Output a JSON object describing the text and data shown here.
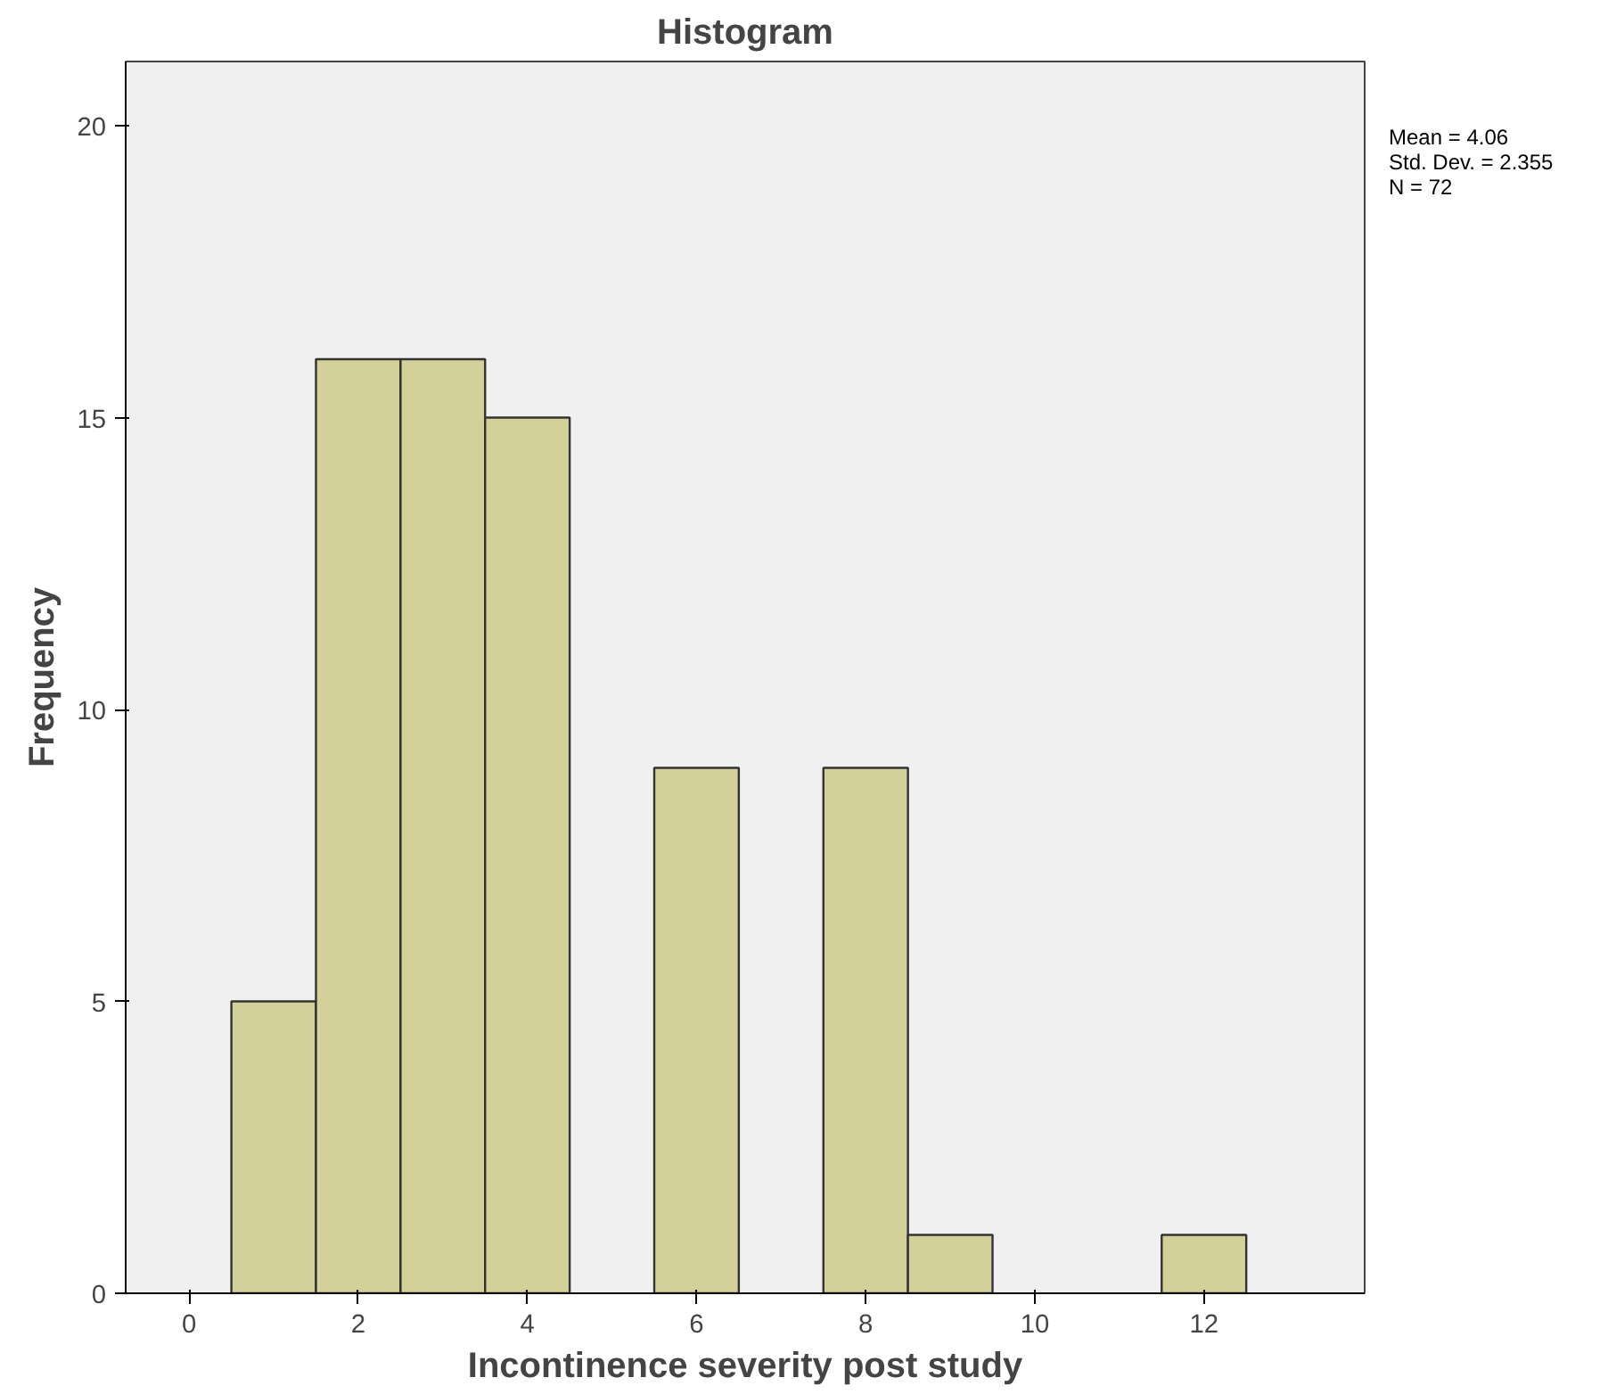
{
  "chart_data": {
    "type": "histogram",
    "title": "Histogram",
    "xlabel": "Incontinence severity post study",
    "ylabel": "Frequency",
    "bins": [
      0.5,
      1.5,
      2.5,
      3.5,
      4.5,
      5.5,
      6.5,
      7.5,
      8.5,
      9.5,
      10.5,
      11.5,
      12.5
    ],
    "values": [
      5,
      16,
      16,
      15,
      0,
      9,
      0,
      9,
      1,
      0,
      0,
      1
    ],
    "color": "#d4d09a",
    "xlim": [
      -0.75,
      13.9
    ],
    "xticks": [
      0,
      2,
      4,
      6,
      8,
      10,
      12
    ],
    "ylim": [
      0,
      21.1
    ],
    "yticks": [
      0,
      5,
      10,
      15,
      20
    ],
    "grid": false,
    "annotations": [
      "Mean = 4.06",
      "Std. Dev. = 2.355",
      "N = 72"
    ]
  }
}
